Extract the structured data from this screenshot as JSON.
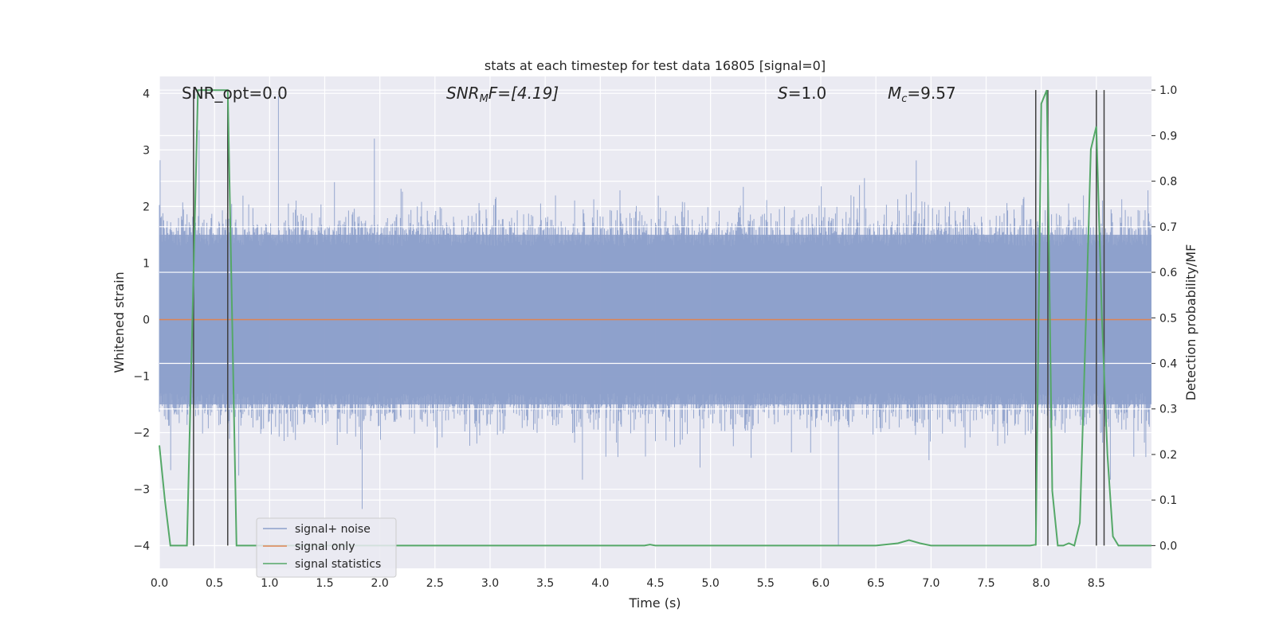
{
  "chart_data": {
    "type": "line",
    "title": "stats at each timestep for test data 16805 [signal=0]",
    "xlabel": "Time (s)",
    "ylabel": "Whitened strain",
    "ylabel_right": "Detection probability/MF",
    "xlim": [
      0.0,
      9.0
    ],
    "ylim": [
      -4.4,
      4.3
    ],
    "ylim_right": [
      -0.05,
      1.03
    ],
    "xticks": [
      "0.0",
      "0.5",
      "1.0",
      "1.5",
      "2.0",
      "2.5",
      "3.0",
      "3.5",
      "4.0",
      "4.5",
      "5.0",
      "5.5",
      "6.0",
      "6.5",
      "7.0",
      "7.5",
      "8.0",
      "8.5"
    ],
    "yticks": [
      "4",
      "3",
      "2",
      "1",
      "0",
      "−1",
      "−2",
      "−3",
      "−4"
    ],
    "yticks_right": [
      "1.0",
      "0.9",
      "0.8",
      "0.7",
      "0.6",
      "0.5",
      "0.4",
      "0.3",
      "0.2",
      "0.1",
      "0.0"
    ],
    "grid": true,
    "legend_position": "lower-left",
    "annotations": {
      "snr_opt": "SNR_opt=0.0",
      "snr_mf_base": "SNR",
      "snr_mf_sub": "M",
      "snr_mf_rest": "F=[4.19]",
      "s_var": "S",
      "s_val": "=1.0",
      "mc_var": "M",
      "mc_sub": "c",
      "mc_val": "=9.57"
    },
    "series": [
      {
        "name": "signal+ noise",
        "color": "#8da0cb",
        "description_values": "noise band approx between -2.5 and 2.5, spikes to 3.9 and -4.0"
      },
      {
        "name": "signal only",
        "color": "#dd8452",
        "values": "constant 0"
      },
      {
        "name": "signal statistics",
        "color": "#55a868",
        "x": [
          0.0,
          0.05,
          0.1,
          0.2,
          0.25,
          0.3,
          0.35,
          0.4,
          0.5,
          0.62,
          0.66,
          0.7,
          0.8,
          1.0,
          4.0,
          4.4,
          4.45,
          4.5,
          6.5,
          6.7,
          6.8,
          6.9,
          7.0,
          7.5,
          7.9,
          7.95,
          8.0,
          8.05,
          8.1,
          8.15,
          8.2,
          8.25,
          8.3,
          8.35,
          8.4,
          8.45,
          8.5,
          8.55,
          8.6,
          8.65,
          8.7,
          8.75,
          8.8,
          8.85,
          8.9,
          8.95,
          9.0
        ],
        "y": [
          0.22,
          0.1,
          0.0,
          0.0,
          0.0,
          0.5,
          1.0,
          1.0,
          1.0,
          1.0,
          0.5,
          0.0,
          0.0,
          0.0,
          0.0,
          0.0,
          0.002,
          0.0,
          0.0,
          0.005,
          0.012,
          0.005,
          0.0,
          0.0,
          0.0,
          0.002,
          0.97,
          1.0,
          0.12,
          0.0,
          0.0,
          0.005,
          0.0,
          0.05,
          0.45,
          0.87,
          0.92,
          0.5,
          0.2,
          0.02,
          0.0,
          0.0,
          0.0,
          0.0,
          0.0,
          0.0,
          0.0
        ]
      },
      {
        "name": "",
        "color": "#404040",
        "vlines_x": [
          0.31,
          0.62,
          7.95,
          8.06,
          8.5,
          8.57
        ]
      }
    ]
  },
  "legend": {
    "items": [
      {
        "label": "signal+ noise",
        "color": "#8da0cb"
      },
      {
        "label": "signal only",
        "color": "#dd8452"
      },
      {
        "label": "signal statistics",
        "color": "#55a868"
      }
    ]
  }
}
